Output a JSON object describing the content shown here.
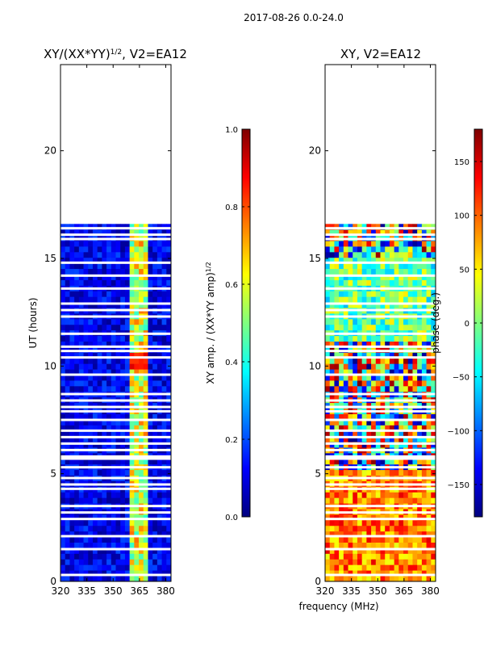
{
  "suptitle": "2017-08-26 0.0-24.0",
  "shared_xlabel": "frequency (MHz)",
  "colors": {
    "jet": [
      "#00007f",
      "#0000ff",
      "#007fff",
      "#00ffff",
      "#7fff7f",
      "#ffff00",
      "#ff7f00",
      "#ff0000",
      "#7f0000"
    ],
    "background": "#ffffff",
    "gap": "#ffffff"
  },
  "chart_data": [
    {
      "type": "heatmap",
      "title_prefix": "XY/(XX*YY)",
      "title_exp": "1/2",
      "title_suffix": ", V2=EA12",
      "ylabel": "UT (hours)",
      "xlim": [
        320,
        383
      ],
      "ylim": [
        0,
        24
      ],
      "xticks": [
        320,
        335,
        350,
        365,
        380
      ],
      "yticks": [
        0,
        5,
        10,
        15,
        20
      ],
      "data_extent_hours": [
        0.0,
        16.6
      ],
      "bright_band_mhz": [
        359,
        368
      ],
      "gap_hours": [
        0.3,
        1.5,
        2.1,
        2.9,
        3.2,
        3.5,
        4.3,
        4.5,
        4.8,
        5.3,
        5.7,
        5.8,
        6.1,
        6.4,
        6.7,
        7.0,
        7.5,
        7.9,
        8.1,
        8.4,
        8.7,
        9.6,
        10.4,
        10.7,
        10.9,
        11.5,
        12.3,
        12.6,
        12.9,
        13.6,
        14.2,
        14.8,
        15.9,
        16.1,
        16.4
      ],
      "colorbar": {
        "label_main": "XY amp. / (XX*YY amp)",
        "label_exp": "1/2",
        "min": 0.0,
        "max": 1.0,
        "ticks": [
          "0.0",
          "0.2",
          "0.4",
          "0.6",
          "0.8",
          "1.0"
        ],
        "tick_values": [
          0.0,
          0.2,
          0.4,
          0.6,
          0.8,
          1.0
        ]
      }
    },
    {
      "type": "heatmap",
      "title": "XY, V2=EA12",
      "xlim": [
        320,
        383
      ],
      "ylim": [
        0,
        24
      ],
      "xticks": [
        320,
        335,
        350,
        365,
        380
      ],
      "yticks": [
        0,
        5,
        10,
        15,
        20
      ],
      "data_extent_hours": [
        0.0,
        16.6
      ],
      "gap_hours": [
        0.3,
        1.5,
        2.1,
        2.9,
        3.2,
        3.5,
        4.3,
        4.5,
        4.8,
        5.3,
        5.7,
        5.8,
        6.1,
        6.4,
        6.7,
        7.0,
        7.5,
        7.9,
        8.1,
        8.4,
        8.7,
        9.6,
        10.4,
        10.7,
        10.9,
        11.5,
        12.3,
        12.6,
        12.9,
        13.6,
        14.2,
        14.8,
        15.9,
        16.1,
        16.4
      ],
      "colorbar": {
        "label": "phase (deg.)",
        "min": -180,
        "max": 180,
        "ticks": [
          "−150",
          "−100",
          "−50",
          "0",
          "50",
          "100",
          "150"
        ],
        "tick_values": [
          -150,
          -100,
          -50,
          0,
          50,
          100,
          150
        ]
      }
    }
  ]
}
